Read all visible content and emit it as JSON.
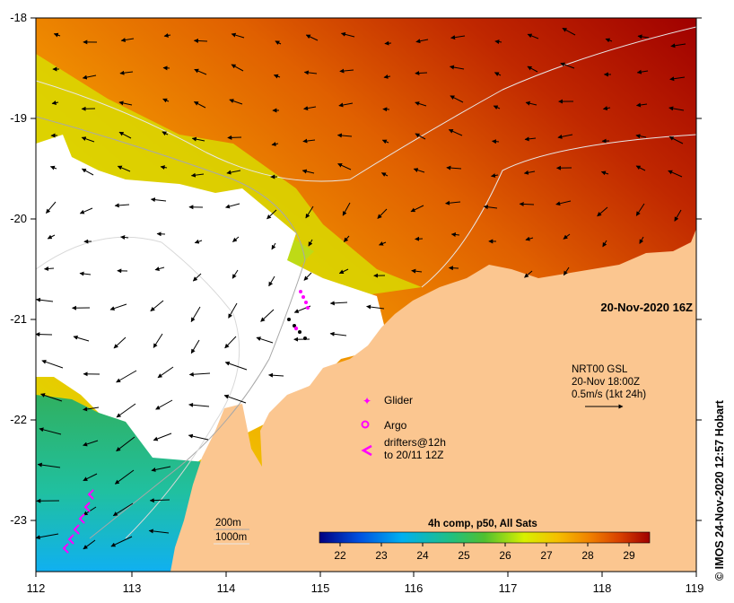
{
  "map": {
    "lon_ticks": [
      "112",
      "113",
      "114",
      "115",
      "116",
      "117",
      "118",
      "119"
    ],
    "lat_ticks": [
      "-18",
      "-19",
      "-20",
      "-21",
      "-22",
      "-23"
    ],
    "lon_range": [
      112,
      119
    ],
    "lat_range": [
      -23.5,
      -18
    ],
    "date_label": "20-Nov-2020 16Z",
    "currents": {
      "model": "NRT00 GSL",
      "time": "20-Nov 18:00Z",
      "scale": "0.5m/s (1kt 24h)"
    },
    "legend": {
      "glider": "Glider",
      "argo": "Argo",
      "drifters_line1": "drifters@12h",
      "drifters_line2": "to 20/11 12Z"
    },
    "isobaths": {
      "shallow": "200m",
      "deep": "1000m"
    },
    "colorbar": {
      "title": "4h comp, p50, All Sats",
      "ticks": [
        "22",
        "23",
        "24",
        "25",
        "26",
        "27",
        "28",
        "29"
      ],
      "range": [
        21.5,
        29.5
      ],
      "colors": [
        "#000080",
        "#0050e0",
        "#00b0f0",
        "#20c080",
        "#50c030",
        "#d8f000",
        "#f5c000",
        "#f08000",
        "#d84000",
        "#a00000"
      ]
    },
    "land_color": "#fbc690",
    "credit": "© IMOS 24-Nov-2020 12:57 Hobart"
  }
}
